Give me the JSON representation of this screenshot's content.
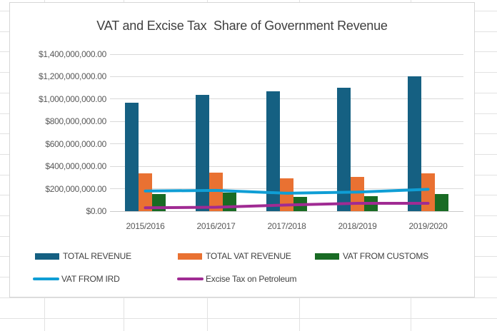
{
  "worksheet": {
    "gridline_color": "#e2e2e2"
  },
  "chart_data": {
    "type": "bar",
    "subtype": "combo-bar-line",
    "title": "VAT and Excise Tax  Share of Government Revenue",
    "categories": [
      "2015/2016",
      "2016/2017",
      "2017/2018",
      "2018/2019",
      "2019/2020"
    ],
    "series": [
      {
        "name": "TOTAL REVENUE",
        "render": "bar",
        "color": "#156082",
        "values": [
          970000000,
          1040000000,
          1070000000,
          1100000000,
          1200000000
        ]
      },
      {
        "name": "TOTAL VAT REVENUE",
        "render": "bar",
        "color": "#E97132",
        "values": [
          335000000,
          345000000,
          290000000,
          305000000,
          335000000
        ]
      },
      {
        "name": "VAT FROM CUSTOMS",
        "render": "bar",
        "color": "#196B24",
        "values": [
          150000000,
          165000000,
          125000000,
          135000000,
          155000000
        ]
      },
      {
        "name": "VAT FROM IRD",
        "render": "line",
        "color": "#0F9ED5",
        "values": [
          180000000,
          185000000,
          160000000,
          170000000,
          195000000
        ]
      },
      {
        "name": "Excise Tax on Petroleum",
        "render": "line",
        "color": "#A02B93",
        "values": [
          30000000,
          35000000,
          55000000,
          70000000,
          70000000
        ]
      }
    ],
    "ylim": [
      0,
      1400000000
    ],
    "ytick_step": 200000000,
    "ytick_labels": [
      "$0.00",
      "$200,000,000.00",
      "$400,000,000.00",
      "$600,000,000.00",
      "$800,000,000.00",
      "$1,000,000,000.00",
      "$1,200,000,000.00",
      "$1,400,000,000.00"
    ],
    "grid": true,
    "legend_position": "bottom",
    "axis_text_color": "#595959",
    "title_color": "#3f3f3f",
    "gridline_color": "#d9d9d9"
  }
}
